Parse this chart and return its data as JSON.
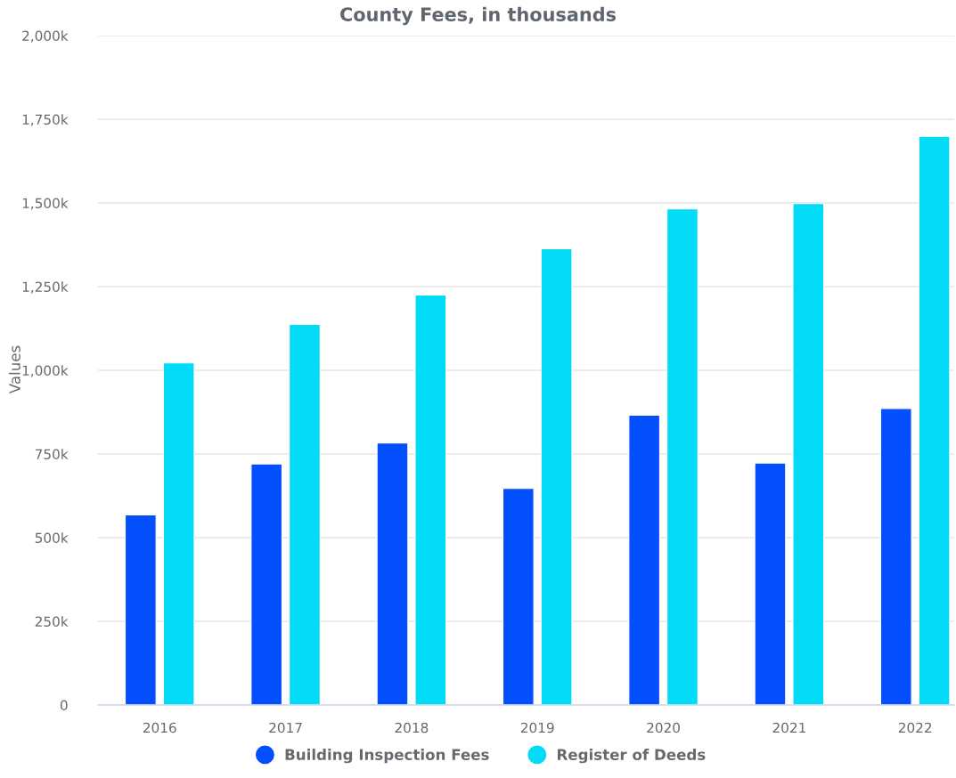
{
  "chart_data": {
    "type": "bar",
    "title": "County Fees, in thousands",
    "ylabel": "Values",
    "categories": [
      "2016",
      "2017",
      "2018",
      "2019",
      "2020",
      "2021",
      "2022"
    ],
    "series": [
      {
        "name": "Building Inspection Fees",
        "color": "#034ffd",
        "values": [
          568000,
          720000,
          783000,
          647000,
          866000,
          723000,
          886000
        ]
      },
      {
        "name": "Register of Deeds",
        "color": "#01dbf6",
        "values": [
          1022000,
          1137000,
          1225000,
          1363000,
          1482000,
          1498000,
          1699000
        ]
      }
    ],
    "ylim": [
      0,
      2000000
    ],
    "yticks": [
      0,
      {
        "value": 250000,
        "label": "250k"
      },
      {
        "value": 500000,
        "label": "500k"
      },
      {
        "value": 750000,
        "label": "750k"
      },
      {
        "value": 1000000,
        "label": "1,000k"
      },
      {
        "value": 1250000,
        "label": "1,250k"
      },
      {
        "value": 1500000,
        "label": "1,500k"
      },
      {
        "value": 1750000,
        "label": "1,750k"
      },
      {
        "value": 2000000,
        "label": "2,000k"
      }
    ],
    "grid": "y",
    "legend": "bottom",
    "marker": "circle"
  }
}
